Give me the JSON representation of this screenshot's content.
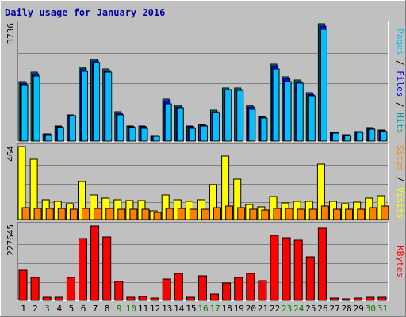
{
  "chart_data": {
    "type": "bar",
    "title": "Daily usage for January 2016",
    "categories": [
      "1",
      "2",
      "3",
      "4",
      "5",
      "6",
      "7",
      "8",
      "9",
      "10",
      "11",
      "12",
      "13",
      "14",
      "15",
      "16",
      "17",
      "18",
      "19",
      "20",
      "21",
      "22",
      "23",
      "24",
      "25",
      "26",
      "27",
      "28",
      "29",
      "30",
      "31"
    ],
    "weekend_days": [
      "3",
      "9",
      "10",
      "16",
      "17",
      "23",
      "24",
      "30",
      "31"
    ],
    "colors": {
      "hits": "#00a0a0",
      "files": "#0000ff",
      "pages": "#00c0ff",
      "visits": "#ffff00",
      "sites": "#ff8000",
      "kbytes": "#ff0000",
      "weekday_label": "#000000",
      "weekend_label": "#008000",
      "title": "#0000a0"
    },
    "panels": [
      {
        "name": "hits-files-pages",
        "max_label": "3736",
        "ylim": [
          0,
          3736
        ],
        "right_label": [
          {
            "text": "Pages",
            "color": "#00c0ff"
          },
          {
            "text": " / ",
            "color": "#000000"
          },
          {
            "text": "Files",
            "color": "#0000ff"
          },
          {
            "text": " / ",
            "color": "#000000"
          },
          {
            "text": "Hits",
            "color": "#00a0a0"
          }
        ],
        "series": [
          {
            "key": "hits",
            "values": [
              1900,
              2200,
              250,
              500,
              850,
              2350,
              2600,
              2300,
              950,
              500,
              500,
              200,
              1350,
              1150,
              500,
              560,
              1000,
              1700,
              1700,
              1150,
              800,
              2450,
              2050,
              1950,
              1550,
              3736,
              300,
              230,
              330,
              450,
              370
            ]
          },
          {
            "key": "files",
            "values": [
              1860,
              2150,
              240,
              480,
              820,
              2300,
              2550,
              2260,
              900,
              480,
              480,
              190,
              1300,
              1100,
              470,
              530,
              960,
              1650,
              1650,
              1100,
              770,
              2400,
              2000,
              1900,
              1500,
              3660,
              290,
              220,
              320,
              430,
              350
            ]
          },
          {
            "key": "pages",
            "values": [
              1800,
              2070,
              230,
              460,
              820,
              2230,
              2500,
              2200,
              860,
              450,
              430,
              180,
              1200,
              1070,
              430,
              500,
              920,
              1650,
              1620,
              1020,
              740,
              2300,
              1900,
              1860,
              1460,
              3560,
              270,
              210,
              300,
              400,
              320
            ]
          }
        ]
      },
      {
        "name": "visits-sites",
        "max_label": "464",
        "ylim": [
          0,
          464
        ],
        "right_label": [
          {
            "text": "Sites",
            "color": "#ff8000"
          },
          {
            "text": " / ",
            "color": "#000000"
          },
          {
            "text": "Visits",
            "color": "#ffff00"
          }
        ],
        "series": [
          {
            "key": "visits",
            "values": [
              464,
              385,
              128,
              118,
              105,
              245,
              158,
              140,
              128,
              125,
              125,
              62,
              160,
              128,
              120,
              128,
              225,
              402,
              258,
              98,
              85,
              150,
              112,
              118,
              120,
              355,
              120,
              105,
              115,
              138,
              155
            ]
          },
          {
            "key": "sites",
            "values": [
              80,
              75,
              75,
              75,
              72,
              75,
              75,
              75,
              72,
              72,
              70,
              50,
              75,
              75,
              70,
              72,
              80,
              90,
              82,
              70,
              65,
              75,
              75,
              70,
              70,
              90,
              70,
              70,
              70,
              82,
              90
            ]
          }
        ]
      },
      {
        "name": "kbytes",
        "max_label": "227645",
        "ylim": [
          0,
          227645
        ],
        "right_label": [
          {
            "text": "KBytes",
            "color": "#ff0000"
          }
        ],
        "series": [
          {
            "key": "kbytes",
            "values": [
              93000,
              72000,
              11000,
              13000,
              70000,
              188000,
              225000,
              192000,
              60000,
              11000,
              15000,
              9000,
              66000,
              82000,
              11000,
              77000,
              22000,
              54000,
              72000,
              82000,
              61000,
              197000,
              189000,
              183000,
              132000,
              217000,
              9000,
              8000,
              9000,
              12000,
              13000
            ]
          }
        ]
      }
    ]
  }
}
